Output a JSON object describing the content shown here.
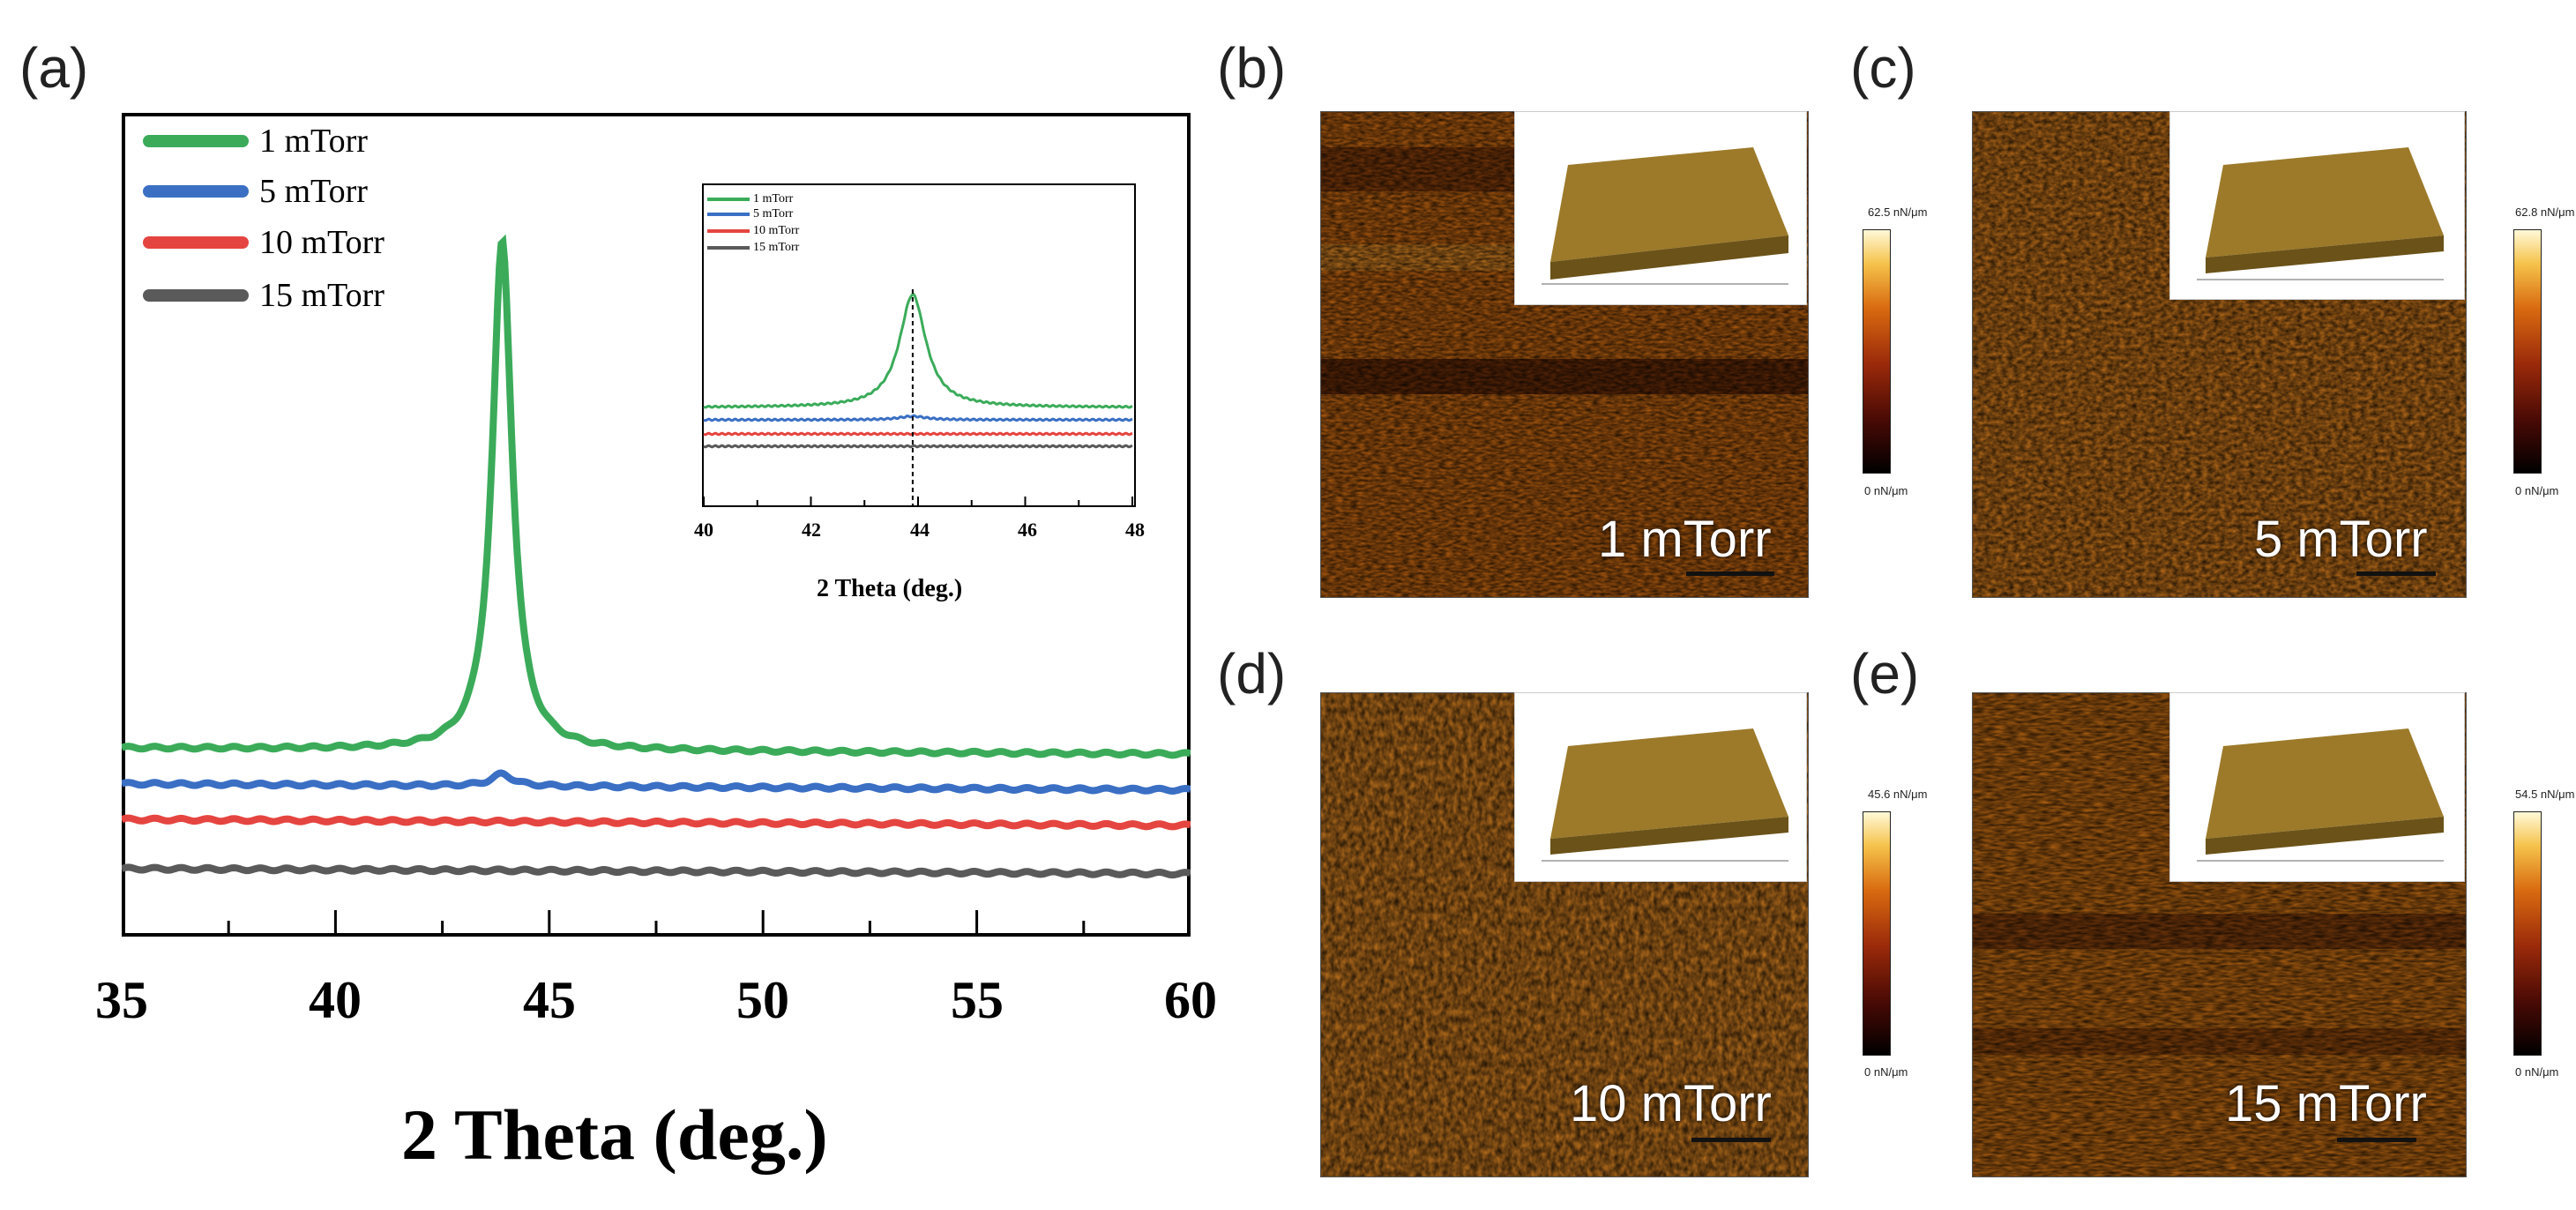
{
  "panel_labels": {
    "a": "(a)",
    "b": "(b)",
    "c": "(c)",
    "d": "(d)",
    "e": "(e)"
  },
  "colors": {
    "s1": "#3bab5a",
    "s5": "#3a6fc4",
    "s10": "#e54540",
    "s15": "#5a5a5a"
  },
  "chart_data": [
    {
      "type": "line",
      "title": "",
      "xlabel": "2 Theta (deg.)",
      "ylabel": "",
      "xlim": [
        35,
        60
      ],
      "xticks": [
        "35",
        "40",
        "45",
        "50",
        "55",
        "60"
      ],
      "peak_position": 43.9,
      "series": [
        {
          "name": "1 mTorr",
          "offset": 3,
          "baseline_start": 1.0,
          "baseline_end": 0.82,
          "peak_height": 15.0,
          "peak_center": 43.9,
          "peak_width": 0.28
        },
        {
          "name": "5 mTorr",
          "offset": 2,
          "baseline_start": 1.0,
          "baseline_end": 0.82,
          "peak_height": 0.35,
          "peak_center": 43.9,
          "peak_width": 0.3
        },
        {
          "name": "10 mTorr",
          "offset": 1,
          "baseline_start": 1.0,
          "baseline_end": 0.82,
          "peak_height": 0.0,
          "peak_center": 43.9,
          "peak_width": 0.3
        },
        {
          "name": "15 mTorr",
          "offset": 0,
          "baseline_start": 0.6,
          "baseline_end": 0.45,
          "peak_height": 0.0,
          "peak_center": 43.9,
          "peak_width": 0.3
        }
      ]
    },
    {
      "type": "line",
      "title": "",
      "xlabel": "2 Theta (deg.)",
      "xlim": [
        40,
        48
      ],
      "xticks": [
        "40",
        "42",
        "44",
        "46",
        "48"
      ],
      "reference_line": 43.9,
      "series": [
        {
          "name": "1 mTorr"
        },
        {
          "name": "5 mTorr"
        },
        {
          "name": "10 mTorr"
        },
        {
          "name": "15 mTorr"
        }
      ]
    }
  ],
  "afm": [
    {
      "id": "b",
      "label": "1 mTorr",
      "cb_max": "62.5 nN/μm",
      "cb_min": "0 nN/μm"
    },
    {
      "id": "c",
      "label": "5 mTorr",
      "cb_max": "62.8 nN/μm",
      "cb_min": "0 nN/μm"
    },
    {
      "id": "d",
      "label": "10 mTorr",
      "cb_max": "45.6 nN/μm",
      "cb_min": "0 nN/μm"
    },
    {
      "id": "e",
      "label": "15 mTorr",
      "cb_max": "54.5 nN/μm",
      "cb_min": "0 nN/μm"
    }
  ]
}
